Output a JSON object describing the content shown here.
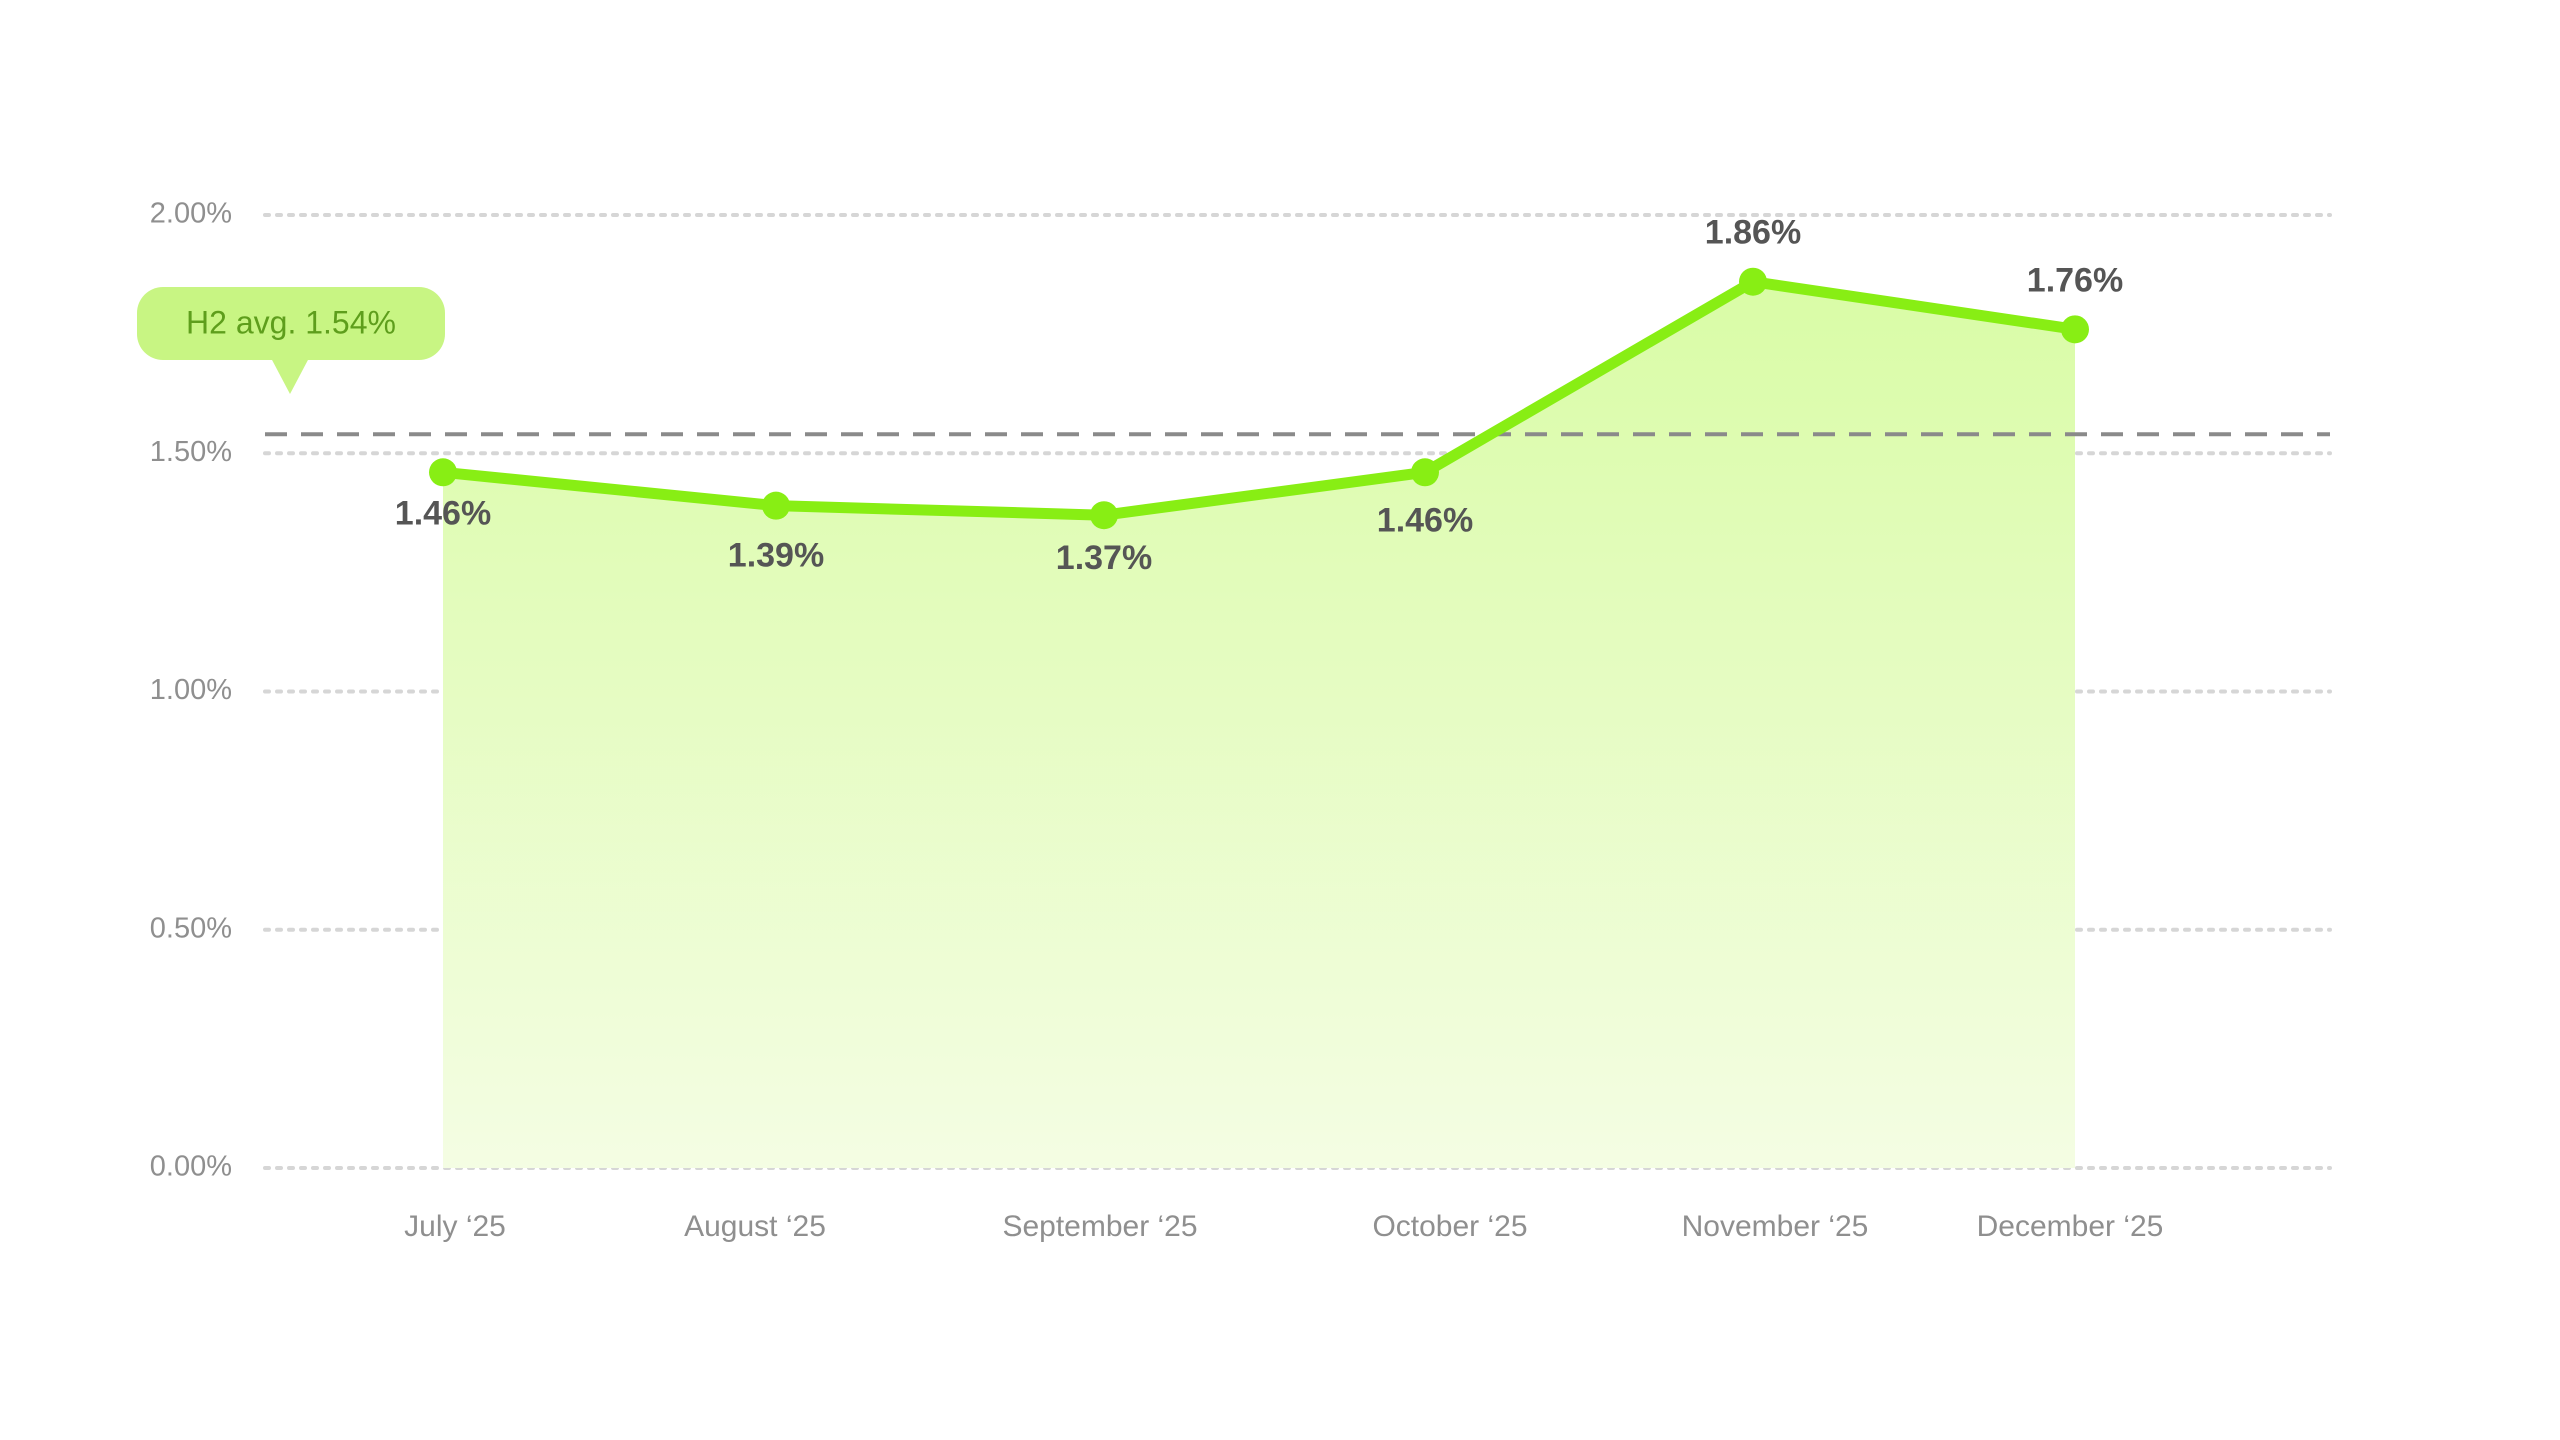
{
  "chart_data": {
    "type": "area",
    "title": "",
    "xlabel": "",
    "ylabel": "",
    "categories": [
      "July ‘25",
      "August ‘25",
      "September ‘25",
      "October ‘25",
      "November ‘25",
      "December ‘25"
    ],
    "values": [
      1.46,
      1.39,
      1.37,
      1.46,
      1.86,
      1.76
    ],
    "data_labels": [
      "1.46%",
      "1.39%",
      "1.37%",
      "1.46%",
      "1.86%",
      "1.76%"
    ],
    "ylim": [
      0,
      2
    ],
    "y_ticks": [
      0,
      0.5,
      1.0,
      1.5,
      2.0
    ],
    "y_tick_labels": [
      "0.00%",
      "0.50%",
      "1.00%",
      "1.50%",
      "2.00%"
    ],
    "grid": true,
    "average_line": {
      "value": 1.54,
      "label": "H2 avg. 1.54%"
    },
    "colors": {
      "line": "#88ee14",
      "fill_top": "#d9fca6",
      "fill_bottom": "#f4fde3",
      "badge": "#c8f583",
      "badge_text": "#5e9e1c",
      "avg_line": "#8a8a8a",
      "grid": "#d6d6d6"
    }
  }
}
